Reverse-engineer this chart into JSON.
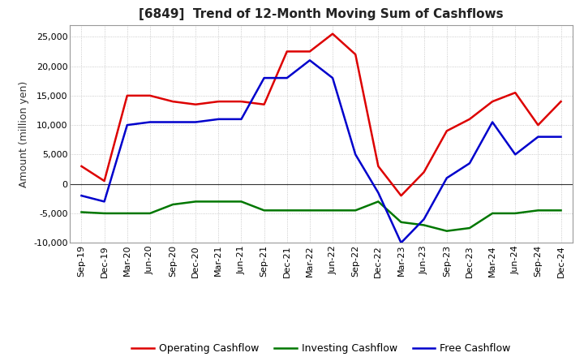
{
  "title": "[6849]  Trend of 12-Month Moving Sum of Cashflows",
  "ylabel": "Amount (million yen)",
  "background_color": "#ffffff",
  "grid_color": "#bbbbbb",
  "ylim": [
    -10000,
    27000
  ],
  "yticks": [
    -10000,
    -5000,
    0,
    5000,
    10000,
    15000,
    20000,
    25000
  ],
  "x_labels": [
    "Sep-19",
    "Dec-19",
    "Mar-20",
    "Jun-20",
    "Sep-20",
    "Dec-20",
    "Mar-21",
    "Jun-21",
    "Sep-21",
    "Dec-21",
    "Mar-22",
    "Jun-22",
    "Sep-22",
    "Dec-22",
    "Mar-23",
    "Jun-23",
    "Sep-23",
    "Dec-23",
    "Mar-24",
    "Jun-24",
    "Sep-24",
    "Dec-24"
  ],
  "operating": [
    3000,
    500,
    15000,
    15000,
    14000,
    13500,
    14000,
    14000,
    13500,
    22500,
    22500,
    25500,
    22000,
    3000,
    -2000,
    2000,
    9000,
    11000,
    14000,
    15500,
    10000,
    14000
  ],
  "investing": [
    -4800,
    -5000,
    -5000,
    -5000,
    -3500,
    -3000,
    -3000,
    -3000,
    -4500,
    -4500,
    -4500,
    -4500,
    -4500,
    -3000,
    -6500,
    -7000,
    -8000,
    -7500,
    -5000,
    -5000,
    -4500,
    -4500
  ],
  "free": [
    -2000,
    -3000,
    10000,
    10500,
    10500,
    10500,
    11000,
    11000,
    18000,
    18000,
    21000,
    18000,
    5000,
    -1500,
    -10000,
    -6000,
    1000,
    3500,
    10500,
    5000,
    8000,
    8000
  ],
  "op_color": "#dd0000",
  "inv_color": "#007700",
  "free_color": "#0000cc",
  "line_width": 1.8,
  "title_fontsize": 11,
  "title_color": "#222222",
  "label_fontsize": 9,
  "tick_fontsize": 8,
  "legend_fontsize": 9
}
